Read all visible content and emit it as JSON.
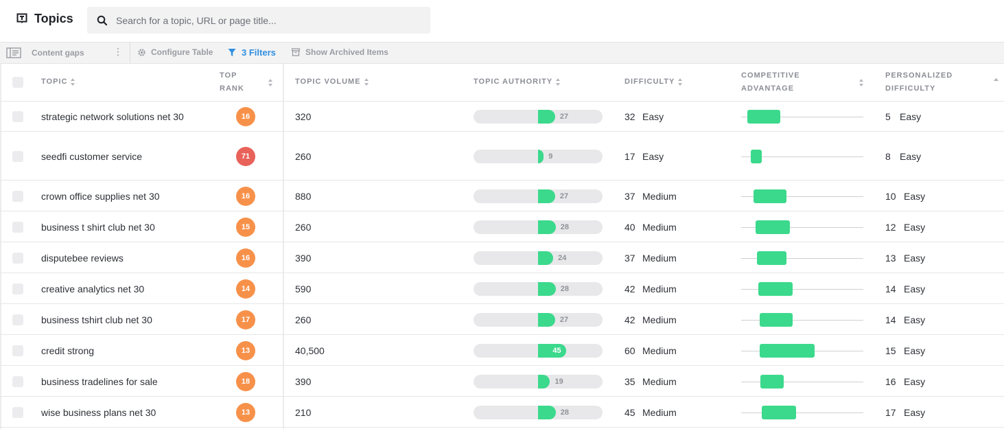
{
  "app": {
    "title": "Topics",
    "search_placeholder": "Search for a topic, URL or page title..."
  },
  "toolbar": {
    "content_gaps": "Content gaps",
    "more": "⋮",
    "configure_table": "Configure Table",
    "filters": "3 Filters",
    "show_archived": "Show Archived Items"
  },
  "columns": {
    "topic": "TOPIC",
    "top_rank_1": "TOP",
    "top_rank_2": "RANK",
    "topic_volume": "TOPIC VOLUME",
    "topic_authority": "TOPIC AUTHORITY",
    "difficulty": "DIFFICULTY",
    "competitive_advantage_1": "COMPETITIVE",
    "competitive_advantage_2": "ADVANTAGE",
    "personalized_difficulty_1": "PERSONALIZED",
    "personalized_difficulty_2": "DIFFICULTY"
  },
  "colors": {
    "rank_orange": "#f7914a",
    "rank_red": "#e8625a",
    "bar_green": "#3bd98c",
    "accent_blue": "#2f8fe0"
  },
  "rows": [
    {
      "topic": "strategic network solutions net 30",
      "rank": "16",
      "rank_color": "orange",
      "volume": "320",
      "authority": "27",
      "difficulty": "32",
      "difficulty_label": "Easy",
      "advantage_start": 0.05,
      "advantage_end": 0.32,
      "pd": "5",
      "pd_label": "Easy"
    },
    {
      "topic": "seedfi customer service",
      "rank": "71",
      "rank_color": "red",
      "volume": "260",
      "authority": "9",
      "difficulty": "17",
      "difficulty_label": "Easy",
      "advantage_start": 0.08,
      "advantage_end": 0.17,
      "pd": "8",
      "pd_label": "Easy"
    },
    {
      "topic": "crown office supplies net 30",
      "rank": "16",
      "rank_color": "orange",
      "volume": "880",
      "authority": "27",
      "difficulty": "37",
      "difficulty_label": "Medium",
      "advantage_start": 0.1,
      "advantage_end": 0.37,
      "pd": "10",
      "pd_label": "Easy"
    },
    {
      "topic": "business t shirt club net 30",
      "rank": "15",
      "rank_color": "orange",
      "volume": "260",
      "authority": "28",
      "difficulty": "40",
      "difficulty_label": "Medium",
      "advantage_start": 0.12,
      "advantage_end": 0.4,
      "pd": "12",
      "pd_label": "Easy"
    },
    {
      "topic": "disputebee reviews",
      "rank": "16",
      "rank_color": "orange",
      "volume": "390",
      "authority": "24",
      "difficulty": "37",
      "difficulty_label": "Medium",
      "advantage_start": 0.13,
      "advantage_end": 0.37,
      "pd": "13",
      "pd_label": "Easy"
    },
    {
      "topic": "creative analytics net 30",
      "rank": "14",
      "rank_color": "orange",
      "volume": "590",
      "authority": "28",
      "difficulty": "42",
      "difficulty_label": "Medium",
      "advantage_start": 0.14,
      "advantage_end": 0.42,
      "pd": "14",
      "pd_label": "Easy"
    },
    {
      "topic": "business tshirt club net 30",
      "rank": "17",
      "rank_color": "orange",
      "volume": "260",
      "authority": "27",
      "difficulty": "42",
      "difficulty_label": "Medium",
      "advantage_start": 0.15,
      "advantage_end": 0.42,
      "pd": "14",
      "pd_label": "Easy"
    },
    {
      "topic": "credit strong",
      "rank": "13",
      "rank_color": "orange",
      "volume": "40,500",
      "authority": "45",
      "difficulty": "60",
      "difficulty_label": "Medium",
      "advantage_start": 0.15,
      "advantage_end": 0.6,
      "pd": "15",
      "pd_label": "Easy"
    },
    {
      "topic": "business tradelines for sale",
      "rank": "18",
      "rank_color": "orange",
      "volume": "390",
      "authority": "19",
      "difficulty": "35",
      "difficulty_label": "Medium",
      "advantage_start": 0.16,
      "advantage_end": 0.35,
      "pd": "16",
      "pd_label": "Easy"
    },
    {
      "topic": "wise business plans net 30",
      "rank": "13",
      "rank_color": "orange",
      "volume": "210",
      "authority": "28",
      "difficulty": "45",
      "difficulty_label": "Medium",
      "advantage_start": 0.17,
      "advantage_end": 0.45,
      "pd": "17",
      "pd_label": "Easy"
    }
  ]
}
